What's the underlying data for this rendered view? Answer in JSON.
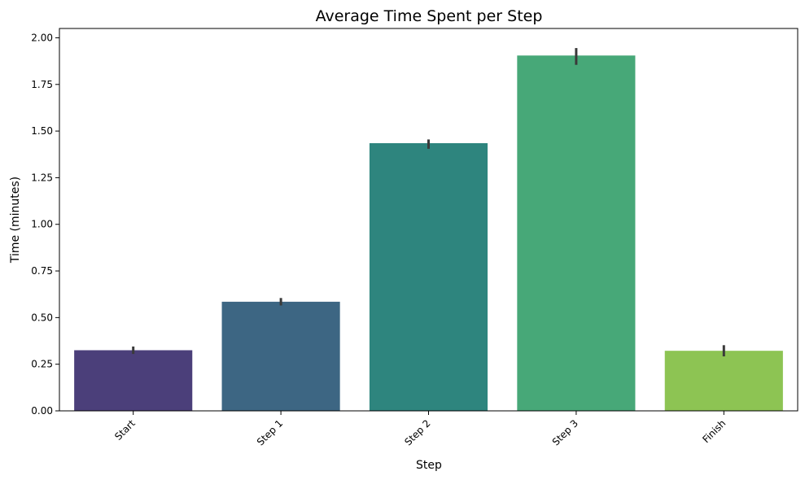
{
  "chart_data": {
    "type": "bar",
    "title": "Average Time Spent per Step",
    "xlabel": "Step",
    "ylabel": "Time (minutes)",
    "categories": [
      "Start",
      "Step 1",
      "Step 2",
      "Step 3",
      "Finish"
    ],
    "values": [
      0.325,
      0.585,
      1.435,
      1.905,
      0.322
    ],
    "error_low": [
      0.305,
      0.565,
      1.405,
      1.855,
      0.292
    ],
    "error_high": [
      0.345,
      0.605,
      1.455,
      1.945,
      0.352
    ],
    "colors": [
      "#4b3f7a",
      "#3d6683",
      "#2e857e",
      "#47a878",
      "#8dc453"
    ],
    "ylim": [
      0,
      2.05
    ],
    "yticks": [
      0.0,
      0.25,
      0.5,
      0.75,
      1.0,
      1.25,
      1.5,
      1.75,
      2.0
    ],
    "ytick_labels": [
      "0.00",
      "0.25",
      "0.50",
      "0.75",
      "1.00",
      "1.25",
      "1.50",
      "1.75",
      "2.00"
    ],
    "grid": false,
    "legend": "none",
    "xtick_rotation": 45
  }
}
